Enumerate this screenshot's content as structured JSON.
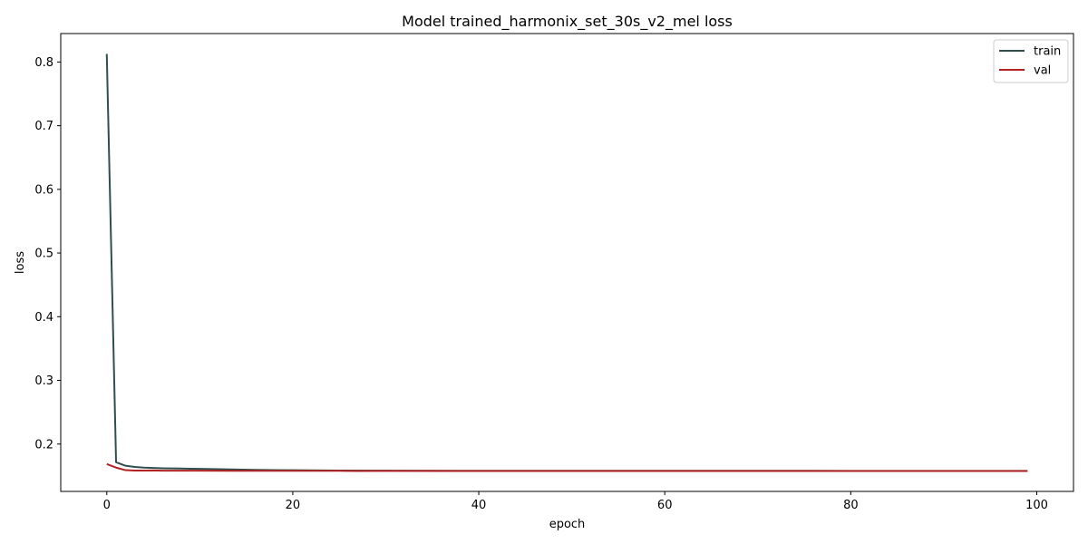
{
  "chart_data": {
    "type": "line",
    "title": "Model trained_harmonix_set_30s_v2_mel loss",
    "xlabel": "epoch",
    "ylabel": "loss",
    "xlim": [
      -4.95,
      103.95
    ],
    "ylim": [
      0.1256,
      0.8447
    ],
    "xticks": [
      0,
      20,
      40,
      60,
      80,
      100
    ],
    "yticks": [
      0.2,
      0.3,
      0.4,
      0.5,
      0.6,
      0.7,
      0.8
    ],
    "grid": false,
    "legend_position": "top-right",
    "series": [
      {
        "name": "train",
        "color": "#2f4f4f",
        "x": [
          0,
          1,
          2,
          3,
          4,
          5,
          6,
          7,
          8,
          9,
          10,
          12,
          14,
          16,
          18,
          20,
          25,
          30,
          40,
          50,
          60,
          70,
          80,
          90,
          99
        ],
        "y": [
          0.8127,
          0.1715,
          0.166,
          0.164,
          0.163,
          0.1625,
          0.162,
          0.1618,
          0.1615,
          0.1612,
          0.161,
          0.1605,
          0.16,
          0.1595,
          0.159,
          0.1588,
          0.1584,
          0.1582,
          0.158,
          0.158,
          0.158,
          0.158,
          0.1579,
          0.1579,
          0.1579
        ]
      },
      {
        "name": "val",
        "color": "#b22222",
        "x": [
          0,
          1,
          2,
          3,
          4,
          5,
          6,
          8,
          10,
          15,
          20,
          25,
          27,
          30,
          40,
          50,
          60,
          70,
          80,
          90,
          99
        ],
        "y": [
          0.1685,
          0.163,
          0.159,
          0.1583,
          0.1583,
          0.1585,
          0.1582,
          0.1582,
          0.1582,
          0.158,
          0.158,
          0.158,
          0.1577,
          0.1578,
          0.1577,
          0.1577,
          0.1577,
          0.1577,
          0.1576,
          0.1576,
          0.1576
        ]
      }
    ]
  }
}
